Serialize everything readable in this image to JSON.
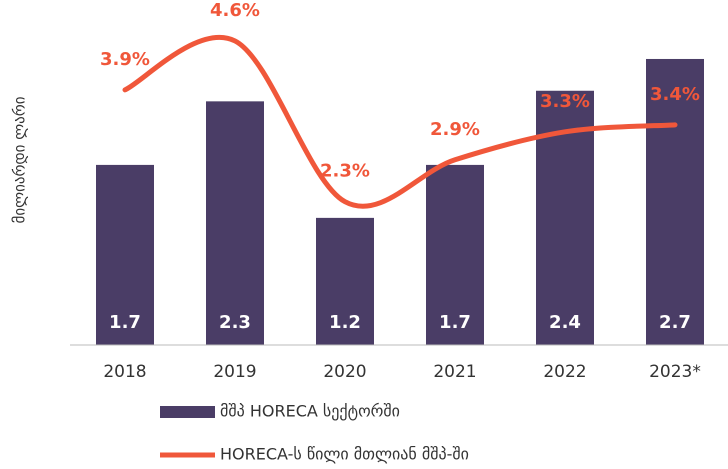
{
  "chart_data": {
    "type": "bar-line",
    "y_label": "მილიარდი ლარი",
    "categories": [
      "2018",
      "2019",
      "2020",
      "2021",
      "2022",
      "2023*"
    ],
    "series": [
      {
        "name": "მშპ HORECA სექტორში",
        "type": "bar",
        "color": "#4a3d66",
        "values": [
          1.7,
          2.3,
          1.2,
          1.7,
          2.4,
          2.7
        ]
      },
      {
        "name": "HORECA-ს წილი მთლიან მშპ-ში",
        "type": "line",
        "axis": "y2",
        "color": "#f0573a",
        "values": [
          3.9,
          4.6,
          2.3,
          2.9,
          3.3,
          3.4
        ],
        "value_labels": [
          "3.9%",
          "4.6%",
          "2.3%",
          "2.9%",
          "3.3%",
          "3.4%"
        ]
      }
    ],
    "ylim": [
      0,
      3.2
    ],
    "y2lim": [
      0.25,
      5.1
    ],
    "legend": "bottom"
  }
}
